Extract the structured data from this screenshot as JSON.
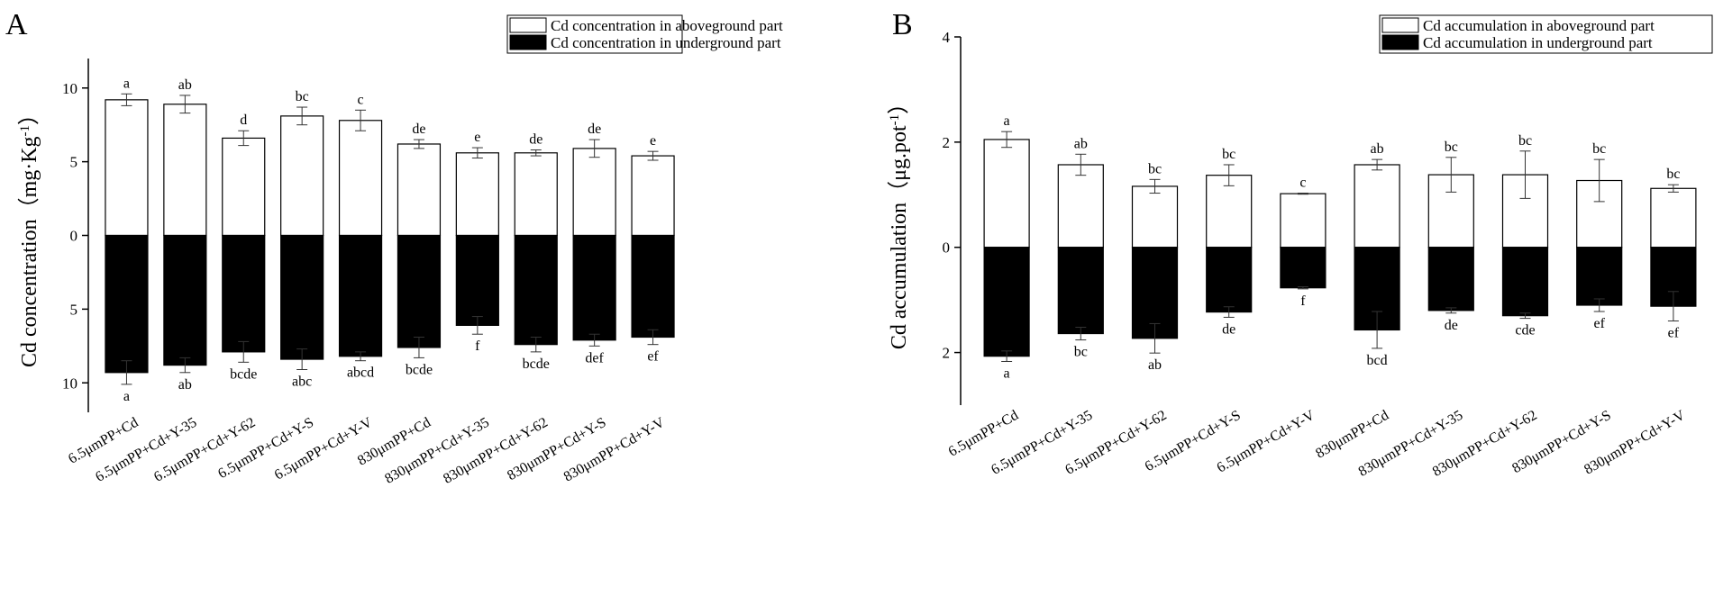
{
  "chart_data": [
    {
      "type": "bar",
      "panel_label": "A",
      "ylabel": "Cd concentration（mg·Kg",
      "ylabel_sup": "-1",
      "ylabel_tail": "）",
      "ylim": [
        -12,
        12
      ],
      "yticks": [
        {
          "v": 10,
          "label": "10"
        },
        {
          "v": 5,
          "label": "5"
        },
        {
          "v": 0,
          "label": "0"
        },
        {
          "v": -5,
          "label": "5"
        },
        {
          "v": -10,
          "label": "10"
        }
      ],
      "categories": [
        "6.5μmPP+Cd",
        "6.5μmPP+Cd+Y-35",
        "6.5μmPP+Cd+Y-62",
        "6.5μmPP+Cd+Y-S",
        "6.5μmPP+Cd+Y-V",
        "830μmPP+Cd",
        "830μmPP+Cd+Y-35",
        "830μmPP+Cd+Y-62",
        "830μmPP+Cd+Y-S",
        "830μmPP+Cd+Y-V"
      ],
      "series": [
        {
          "name": "Cd concentration in aboveground part",
          "fill": "#ffffff",
          "values": [
            9.2,
            8.9,
            6.6,
            8.1,
            7.8,
            6.2,
            5.6,
            5.6,
            5.9,
            5.4
          ],
          "errors": [
            0.4,
            0.6,
            0.5,
            0.6,
            0.7,
            0.3,
            0.35,
            0.2,
            0.6,
            0.3
          ],
          "letters": [
            "a",
            "ab",
            "d",
            "bc",
            "c",
            "de",
            "e",
            "de",
            "de",
            "e"
          ]
        },
        {
          "name": "Cd concentration in underground part",
          "fill": "#000000",
          "values": [
            9.3,
            8.8,
            7.9,
            8.4,
            8.2,
            7.6,
            6.1,
            7.4,
            7.1,
            6.9
          ],
          "errors": [
            0.8,
            0.5,
            0.7,
            0.7,
            0.3,
            0.7,
            0.6,
            0.5,
            0.4,
            0.5
          ],
          "letters": [
            "a",
            "ab",
            "bcde",
            "abc",
            "abcd",
            "bcde",
            "f",
            "bcde",
            "def",
            "ef"
          ]
        }
      ]
    },
    {
      "type": "bar",
      "panel_label": "B",
      "ylabel": "Cd accumulation（μg.pot",
      "ylabel_sup": "-1",
      "ylabel_tail": "）",
      "ylim": [
        -3,
        4
      ],
      "yticks": [
        {
          "v": 4,
          "label": "4"
        },
        {
          "v": 2,
          "label": "2"
        },
        {
          "v": 0,
          "label": "0"
        },
        {
          "v": -2,
          "label": "2"
        }
      ],
      "categories": [
        "6.5μmPP+Cd",
        "6.5μmPP+Cd+Y-35",
        "6.5μmPP+Cd+Y-62",
        "6.5μmPP+Cd+Y-S",
        "6.5μmPP+Cd+Y-V",
        "830μmPP+Cd",
        "830μmPP+Cd+Y-35",
        "830μmPP+Cd+Y-62",
        "830μmPP+Cd+Y-S",
        "830μmPP+Cd+Y-V"
      ],
      "series": [
        {
          "name": "Cd accumulation in aboveground part",
          "fill": "#ffffff",
          "values": [
            2.05,
            1.57,
            1.16,
            1.37,
            1.02,
            1.57,
            1.38,
            1.38,
            1.27,
            1.12
          ],
          "errors": [
            0.15,
            0.2,
            0.13,
            0.2,
            0.01,
            0.1,
            0.33,
            0.45,
            0.4,
            0.07
          ],
          "letters": [
            "a",
            "ab",
            "bc",
            "bc",
            "c",
            "ab",
            "bc",
            "bc",
            "bc",
            "bc"
          ]
        },
        {
          "name": "Cd accumulation in underground part",
          "fill": "#000000",
          "values": [
            2.07,
            1.64,
            1.73,
            1.23,
            0.77,
            1.57,
            1.2,
            1.3,
            1.1,
            1.12
          ],
          "errors": [
            0.1,
            0.12,
            0.28,
            0.1,
            0.02,
            0.35,
            0.05,
            0.05,
            0.12,
            0.28
          ],
          "letters": [
            "a",
            "bc",
            "ab",
            "de",
            "f",
            "bcd",
            "de",
            "cde",
            "ef",
            "ef"
          ]
        }
      ]
    }
  ]
}
